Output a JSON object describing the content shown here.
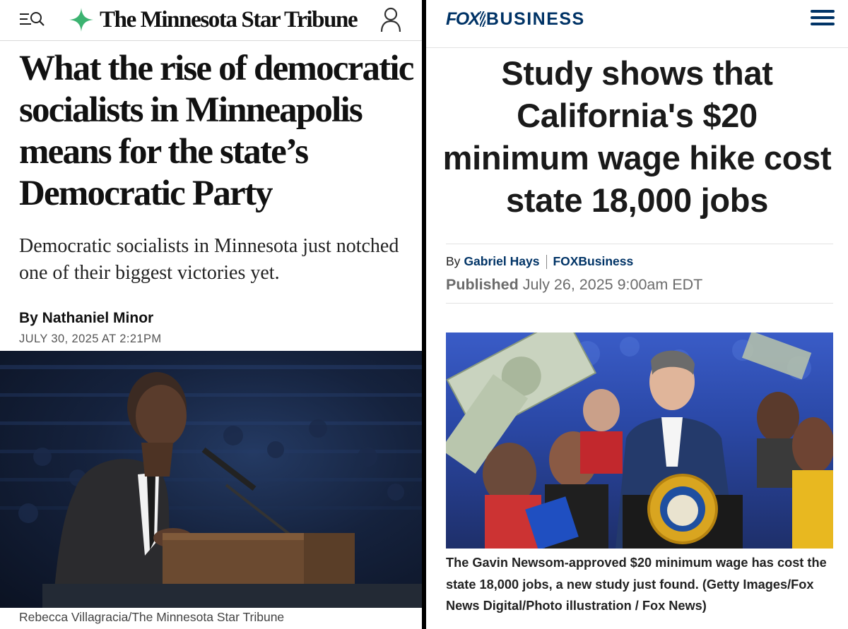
{
  "left_panel": {
    "header": {
      "logo_text": "The Minnesota Star Tribune",
      "menu_icon": "menu-search-icon",
      "user_icon": "user-icon",
      "logo_icon": "star-logo-icon",
      "accent_color": "#3cb371"
    },
    "article": {
      "headline": "What the rise of democratic socialists in Minneapolis means for the state’s Democratic Party",
      "dek": "Democratic socialists in Minnesota just notched one of their biggest victories yet.",
      "byline": "By Nathaniel Minor",
      "date": "JULY 30, 2025 AT 2:21PM",
      "photo_credit": "Rebecca Villagracia/The Minnesota Star Tribune"
    }
  },
  "right_panel": {
    "header": {
      "logo_fox": "FOX",
      "logo_business": "BUSINESS",
      "menu_icon": "hamburger-icon",
      "brand_color": "#003366"
    },
    "article": {
      "headline": "Study shows that California's $20 minimum wage hike cost state 18,000 jobs",
      "by_prefix": "By",
      "author": "Gabriel Hays",
      "outlet": "FOXBusiness",
      "published_label": "Published",
      "published_date": "July 26, 2025 9:00am EDT",
      "caption": "The Gavin Newsom-approved $20 minimum wage has cost the state 18,000 jobs, a new study just found.  (Getty Images/Fox News Digital/Photo illustration / Fox News)"
    }
  }
}
